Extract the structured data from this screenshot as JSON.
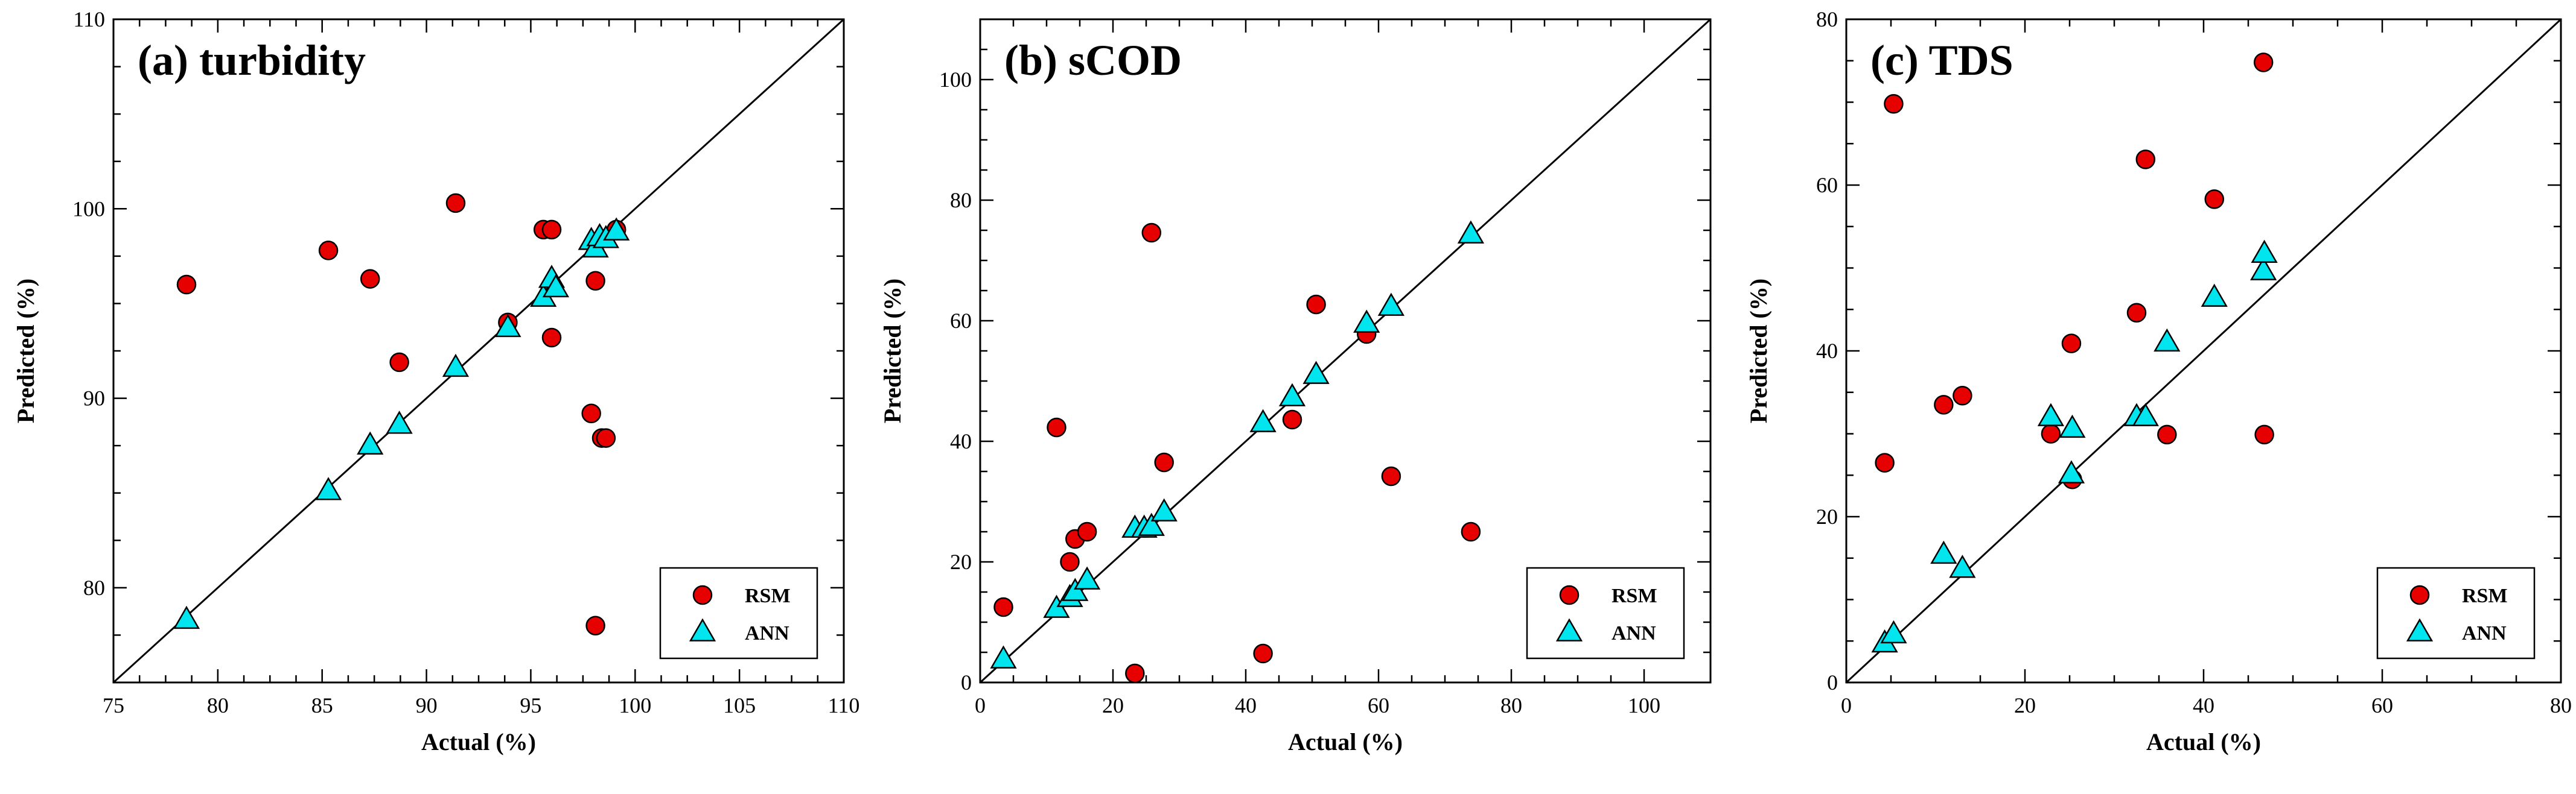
{
  "chart_data": [
    {
      "type": "scatter",
      "title": "(a) turbidity",
      "xlabel": "Actual (%)",
      "ylabel": "Predicted (%)",
      "xlim": [
        75,
        110
      ],
      "ylim": [
        75,
        110
      ],
      "xticks": [
        75,
        80,
        85,
        90,
        95,
        100,
        105,
        110
      ],
      "yticks": [
        80,
        90,
        100,
        110
      ],
      "reference_line": "y = x",
      "legend_position": "bottom-right",
      "series": [
        {
          "name": "RSM",
          "marker": "circle",
          "color": "#e60000",
          "points": [
            [
              78.5,
              96.0
            ],
            [
              85.3,
              97.8
            ],
            [
              87.3,
              96.3
            ],
            [
              88.7,
              91.9
            ],
            [
              91.4,
              100.3
            ],
            [
              93.9,
              94.0
            ],
            [
              95.6,
              98.9
            ],
            [
              96.0,
              98.9
            ],
            [
              96.0,
              93.2
            ],
            [
              97.9,
              89.2
            ],
            [
              98.1,
              96.2
            ],
            [
              98.1,
              78.0
            ],
            [
              98.4,
              87.9
            ],
            [
              98.6,
              87.9
            ],
            [
              99.1,
              98.9
            ]
          ]
        },
        {
          "name": "ANN",
          "marker": "triangle",
          "color": "#00e5ee",
          "points": [
            [
              78.5,
              78.3
            ],
            [
              85.3,
              85.1
            ],
            [
              87.3,
              87.5
            ],
            [
              88.7,
              88.6
            ],
            [
              91.4,
              91.6
            ],
            [
              93.9,
              93.7
            ],
            [
              95.6,
              95.3
            ],
            [
              96.0,
              96.3
            ],
            [
              96.2,
              95.8
            ],
            [
              97.9,
              98.3
            ],
            [
              98.1,
              97.9
            ],
            [
              98.3,
              98.5
            ],
            [
              98.6,
              98.4
            ],
            [
              99.1,
              98.8
            ]
          ]
        }
      ]
    },
    {
      "type": "scatter",
      "title": "(b) sCOD",
      "xlabel": "Actual (%)",
      "ylabel": "Predicted (%)",
      "xlim": [
        0,
        110
      ],
      "ylim": [
        0,
        110
      ],
      "xticks": [
        0,
        20,
        40,
        60,
        80,
        100
      ],
      "yticks": [
        0,
        20,
        40,
        60,
        80,
        100
      ],
      "reference_line": "y = x",
      "legend_position": "bottom-right",
      "series": [
        {
          "name": "RSM",
          "marker": "circle",
          "color": "#e60000",
          "points": [
            [
              3.5,
              12.5
            ],
            [
              11.5,
              42.3
            ],
            [
              13.5,
              20.0
            ],
            [
              14.3,
              23.8
            ],
            [
              16.1,
              25.0
            ],
            [
              23.3,
              1.5
            ],
            [
              25.8,
              74.6
            ],
            [
              27.7,
              36.5
            ],
            [
              42.6,
              4.8
            ],
            [
              47.0,
              43.6
            ],
            [
              50.6,
              62.7
            ],
            [
              58.2,
              57.8
            ],
            [
              61.9,
              34.2
            ],
            [
              73.9,
              25.0
            ]
          ]
        },
        {
          "name": "ANN",
          "marker": "triangle",
          "color": "#00e5ee",
          "points": [
            [
              3.5,
              3.8
            ],
            [
              11.5,
              12.2
            ],
            [
              13.5,
              14.0
            ],
            [
              14.3,
              15.0
            ],
            [
              16.1,
              16.9
            ],
            [
              23.3,
              25.5
            ],
            [
              24.7,
              25.5
            ],
            [
              25.8,
              25.8
            ],
            [
              27.7,
              28.2
            ],
            [
              42.6,
              43.0
            ],
            [
              47.0,
              47.3
            ],
            [
              50.6,
              51.0
            ],
            [
              58.2,
              59.5
            ],
            [
              61.9,
              62.3
            ],
            [
              73.9,
              74.3
            ]
          ]
        }
      ]
    },
    {
      "type": "scatter",
      "title": "(c) TDS",
      "xlabel": "Actual (%)",
      "ylabel": "Predicted (%)",
      "xlim": [
        0,
        80
      ],
      "ylim": [
        0,
        80
      ],
      "xticks": [
        0,
        20,
        40,
        60,
        80
      ],
      "yticks": [
        0,
        20,
        40,
        60,
        80
      ],
      "reference_line": "y = x",
      "legend_position": "bottom-right",
      "series": [
        {
          "name": "RSM",
          "marker": "circle",
          "color": "#e60000",
          "points": [
            [
              4.3,
              26.5
            ],
            [
              5.3,
              69.8
            ],
            [
              10.9,
              33.5
            ],
            [
              13.0,
              34.6
            ],
            [
              22.9,
              30.0
            ],
            [
              25.2,
              40.9
            ],
            [
              25.3,
              24.5
            ],
            [
              32.5,
              44.6
            ],
            [
              33.5,
              63.1
            ],
            [
              35.9,
              29.9
            ],
            [
              41.2,
              58.3
            ],
            [
              46.7,
              74.8
            ],
            [
              46.8,
              29.9
            ]
          ]
        },
        {
          "name": "ANN",
          "marker": "triangle",
          "color": "#00e5ee",
          "points": [
            [
              4.3,
              4.7
            ],
            [
              5.3,
              5.8
            ],
            [
              10.9,
              15.4
            ],
            [
              13.0,
              13.7
            ],
            [
              22.9,
              32.0
            ],
            [
              25.2,
              25.1
            ],
            [
              25.3,
              30.6
            ],
            [
              32.5,
              32.0
            ],
            [
              33.5,
              32.0
            ],
            [
              35.9,
              41.0
            ],
            [
              41.2,
              46.4
            ],
            [
              46.7,
              49.6
            ],
            [
              46.8,
              51.7
            ]
          ]
        }
      ]
    }
  ]
}
